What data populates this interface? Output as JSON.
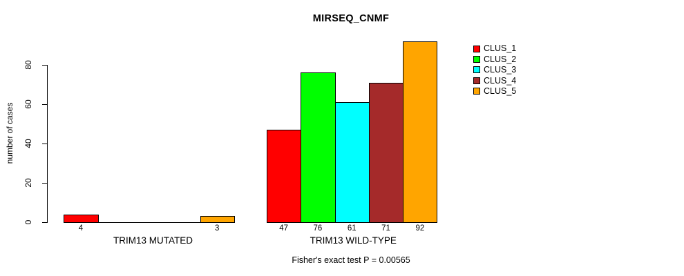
{
  "chart_data": {
    "type": "bar",
    "title": "MIRSEQ_CNMF",
    "ylabel": "number of cases",
    "xlabel": "",
    "yticks": [
      0,
      20,
      40,
      60,
      80
    ],
    "ylim": [
      0,
      93
    ],
    "grid": false,
    "legend_position": "right-outside-top",
    "categories": [
      "TRIM13 MUTATED",
      "TRIM13 WILD-TYPE"
    ],
    "series": [
      {
        "name": "CLUS_1",
        "color": "#FF0000",
        "values": [
          4,
          47
        ]
      },
      {
        "name": "CLUS_2",
        "color": "#00FF00",
        "values": [
          0,
          76
        ]
      },
      {
        "name": "CLUS_3",
        "color": "#00FFFF",
        "values": [
          0,
          61
        ]
      },
      {
        "name": "CLUS_4",
        "color": "#A52A2A",
        "values": [
          0,
          71
        ]
      },
      {
        "name": "CLUS_5",
        "color": "#FFA500",
        "values": [
          3,
          92
        ]
      }
    ],
    "bar_value_labels": {
      "TRIM13 MUTATED": [
        "4",
        "3"
      ],
      "TRIM13 WILD-TYPE": [
        "47",
        "76",
        "61",
        "71",
        "92"
      ]
    },
    "annotation": "Fisher's exact test P = 0.00565"
  }
}
